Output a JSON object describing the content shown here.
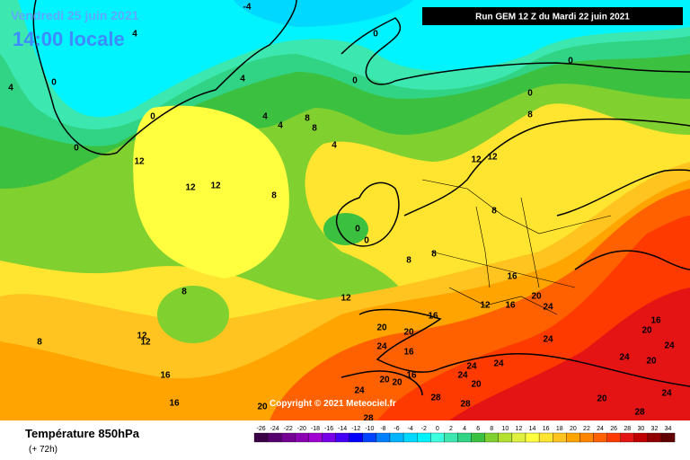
{
  "header": {
    "date": "Vendredi 25 juin 2021",
    "time": "14:00 locale",
    "run": "Run GEM 12 Z du Mardi 22 juin 2021"
  },
  "copyright": "Copyright © 2021 Meteociel.fr",
  "footer": {
    "title": "Température 850hPa",
    "lead": "(+ 72h)"
  },
  "legend": {
    "values": [
      -26,
      -24,
      -22,
      -20,
      -18,
      -16,
      -14,
      -12,
      -10,
      -8,
      -6,
      -4,
      -2,
      0,
      2,
      4,
      6,
      8,
      10,
      12,
      14,
      16,
      18,
      20,
      22,
      24,
      26,
      28,
      30,
      32,
      34
    ],
    "colors": [
      "#3a0046",
      "#560070",
      "#740092",
      "#8c00b4",
      "#a000d2",
      "#7800e6",
      "#4400f4",
      "#0000ff",
      "#0044ff",
      "#0080ff",
      "#00b4ff",
      "#00d8ff",
      "#00f4ff",
      "#3cffe0",
      "#3ce8b0",
      "#30d484",
      "#3cc040",
      "#80d030",
      "#b4e030",
      "#e0f040",
      "#ffff40",
      "#ffe430",
      "#ffc420",
      "#ffa400",
      "#ff8400",
      "#ff6000",
      "#ff3a00",
      "#e41414",
      "#c00000",
      "#900000",
      "#600000"
    ]
  },
  "contour_labels": [
    -4,
    4,
    0,
    4,
    0,
    0,
    0,
    0,
    4,
    0,
    0,
    4,
    4,
    8,
    8,
    4,
    8,
    12,
    12,
    12,
    8,
    0,
    0,
    12,
    12,
    8,
    8,
    8,
    8,
    12,
    16,
    16,
    12,
    16,
    20,
    24,
    20,
    24,
    20,
    16,
    8,
    12,
    12,
    16,
    16,
    20,
    20,
    20,
    16,
    24,
    24,
    20,
    28,
    28,
    24,
    24,
    24,
    20,
    24,
    24,
    20,
    24,
    28,
    20,
    16,
    28
  ]
}
